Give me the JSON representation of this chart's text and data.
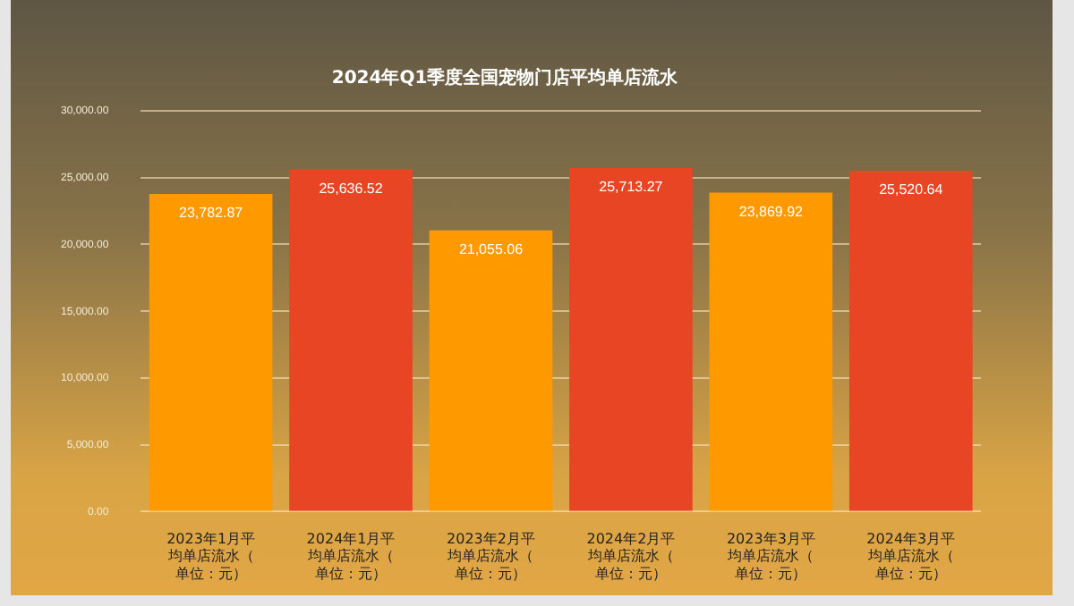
{
  "chart_data": {
    "type": "bar",
    "title": "2024年Q1季度全国宠物门店平均单店流水",
    "categories": [
      "2023年1月平均单店流水（单位：元）",
      "2024年1月平均单店流水（单位：元）",
      "2023年2月平均单店流水（单位：元）",
      "2024年2月平均单店流水（单位：元）",
      "2023年3月平均单店流水（单位：元）",
      "2024年3月平均单店流水（单位：元）"
    ],
    "values": [
      23782.87,
      25636.52,
      21055.06,
      25713.27,
      23869.92,
      25520.64
    ],
    "value_labels": [
      "23,782.87",
      "25,636.52",
      "21,055.06",
      "25,713.27",
      "23,869.92",
      "25,520.64"
    ],
    "colors": [
      "#ff9900",
      "#e84524",
      "#ff9900",
      "#e84524",
      "#ff9900",
      "#e84524"
    ],
    "ylim": [
      0,
      30000
    ],
    "yticks": [
      {
        "value": 0,
        "label": "0.00"
      },
      {
        "value": 5000,
        "label": "5,000.00"
      },
      {
        "value": 10000,
        "label": "10,000.00"
      },
      {
        "value": 15000,
        "label": "15,000.00"
      },
      {
        "value": 20000,
        "label": "20,000.00"
      },
      {
        "value": 25000,
        "label": "25,000.00"
      },
      {
        "value": 30000,
        "label": "30,000.00"
      }
    ],
    "grid": "y",
    "legend": false
  }
}
